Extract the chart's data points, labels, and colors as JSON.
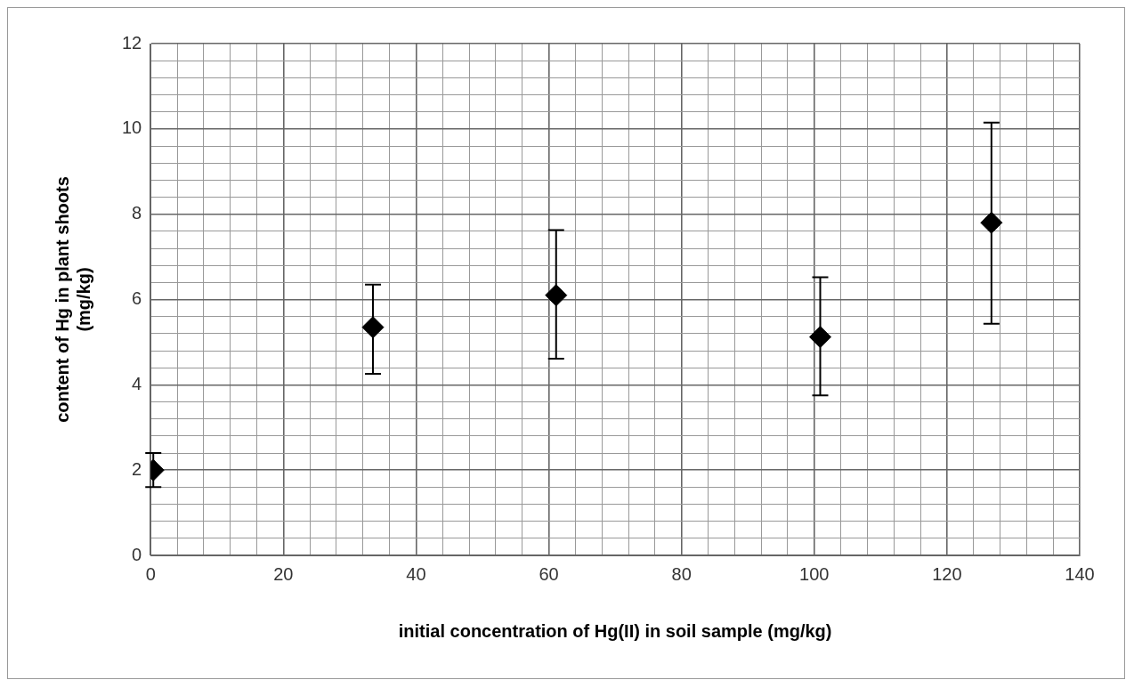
{
  "chart_data": {
    "type": "scatter",
    "xlabel": "initial concentration of Hg(II) in soil sample (mg/kg)",
    "ylabel": "content of Hg in plant shoots\n(mg/kg)",
    "x": [
      0.4,
      33.5,
      61.1,
      100.9,
      126.7
    ],
    "series": [
      {
        "color": "#000000",
        "values": [
          2.0,
          5.35,
          6.1,
          5.12,
          7.8
        ],
        "errors": [
          [
            1.6,
            2.4
          ],
          [
            4.26,
            6.35
          ],
          [
            4.61,
            7.63
          ],
          [
            3.75,
            6.52
          ],
          [
            5.43,
            10.15
          ]
        ]
      }
    ],
    "xlim": [
      0,
      140
    ],
    "xticks": [
      0,
      {
        "value": 4,
        "label": null
      },
      {
        "value": 8,
        "label": null
      },
      {
        "value": 12,
        "label": null
      },
      {
        "value": 16,
        "label": null
      },
      20,
      {
        "value": 24,
        "label": null
      },
      {
        "value": 28,
        "label": null
      },
      {
        "value": 32,
        "label": null
      },
      {
        "value": 36,
        "label": null
      },
      40,
      {
        "value": 44,
        "label": null
      },
      {
        "value": 48,
        "label": null
      },
      {
        "value": 52,
        "label": null
      },
      {
        "value": 56,
        "label": null
      },
      60,
      {
        "value": 64,
        "label": null
      },
      {
        "value": 68,
        "label": null
      },
      {
        "value": 72,
        "label": null
      },
      {
        "value": 76,
        "label": null
      },
      80,
      {
        "value": 84,
        "label": null
      },
      {
        "value": 88,
        "label": null
      },
      {
        "value": 92,
        "label": null
      },
      {
        "value": 96,
        "label": null
      },
      100,
      {
        "value": 104,
        "label": null
      },
      {
        "value": 108,
        "label": null
      },
      {
        "value": 112,
        "label": null
      },
      {
        "value": 116,
        "label": null
      },
      120,
      {
        "value": 124,
        "label": null
      },
      {
        "value": 128,
        "label": null
      },
      {
        "value": 132,
        "label": null
      },
      {
        "value": 136,
        "label": null
      },
      140
    ],
    "ylim": [
      0,
      12
    ],
    "yticks": [
      0,
      {
        "value": 0.4,
        "label": null
      },
      {
        "value": 0.8,
        "label": null
      },
      {
        "value": 1.2,
        "label": null
      },
      {
        "value": 1.6,
        "label": null
      },
      2,
      {
        "value": 2.4,
        "label": null
      },
      {
        "value": 2.8,
        "label": null
      },
      {
        "value": 3.2,
        "label": null
      },
      {
        "value": 3.6,
        "label": null
      },
      4,
      {
        "value": 4.4,
        "label": null
      },
      {
        "value": 4.8,
        "label": null
      },
      {
        "value": 5.2,
        "label": null
      },
      {
        "value": 5.6,
        "label": null
      },
      6,
      {
        "value": 6.4,
        "label": null
      },
      {
        "value": 6.8,
        "label": null
      },
      {
        "value": 7.2,
        "label": null
      },
      {
        "value": 7.6,
        "label": null
      },
      8,
      {
        "value": 8.4,
        "label": null
      },
      {
        "value": 8.8,
        "label": null
      },
      {
        "value": 9.2,
        "label": null
      },
      {
        "value": 9.6,
        "label": null
      },
      10,
      {
        "value": 10.4,
        "label": null
      },
      {
        "value": 10.8,
        "label": null
      },
      {
        "value": 11.2,
        "label": null
      },
      {
        "value": 11.6,
        "label": null
      },
      12
    ],
    "grid": true,
    "marker": "diamond",
    "legend": false
  }
}
